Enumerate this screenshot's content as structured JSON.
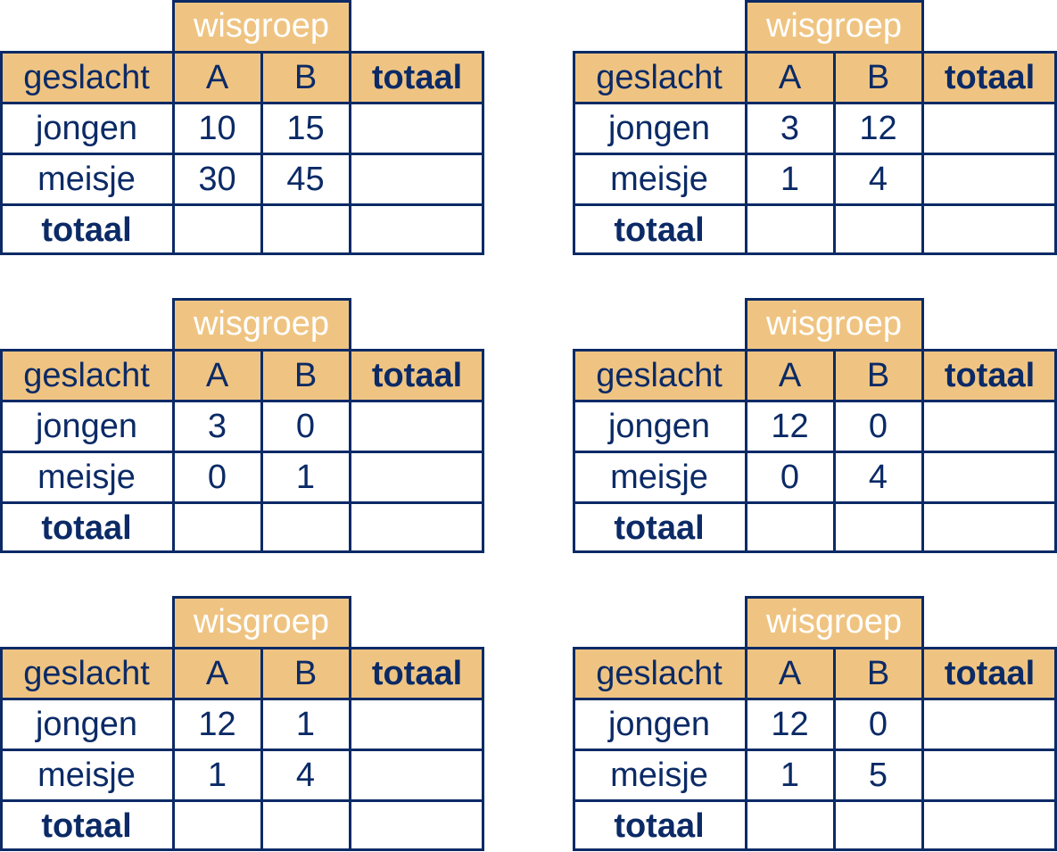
{
  "colors": {
    "header_fill": "#efc482",
    "border": "#0b2a66",
    "text": "#0b2a66",
    "group_header_text": "#ffffff"
  },
  "tables": [
    {
      "group_header": "wisgroep",
      "row_header_label": "geslacht",
      "columns": [
        "A",
        "B"
      ],
      "total_label": "totaal",
      "rows": [
        {
          "label": "jongen",
          "values": [
            "10",
            "15"
          ],
          "total": ""
        },
        {
          "label": "meisje",
          "values": [
            "30",
            "45"
          ],
          "total": ""
        }
      ],
      "total_row": {
        "label": "totaal",
        "values": [
          "",
          ""
        ],
        "total": ""
      }
    },
    {
      "group_header": "wisgroep",
      "row_header_label": "geslacht",
      "columns": [
        "A",
        "B"
      ],
      "total_label": "totaal",
      "rows": [
        {
          "label": "jongen",
          "values": [
            "3",
            "12"
          ],
          "total": ""
        },
        {
          "label": "meisje",
          "values": [
            "1",
            "4"
          ],
          "total": ""
        }
      ],
      "total_row": {
        "label": "totaal",
        "values": [
          "",
          ""
        ],
        "total": ""
      }
    },
    {
      "group_header": "wisgroep",
      "row_header_label": "geslacht",
      "columns": [
        "A",
        "B"
      ],
      "total_label": "totaal",
      "rows": [
        {
          "label": "jongen",
          "values": [
            "3",
            "0"
          ],
          "total": ""
        },
        {
          "label": "meisje",
          "values": [
            "0",
            "1"
          ],
          "total": ""
        }
      ],
      "total_row": {
        "label": "totaal",
        "values": [
          "",
          ""
        ],
        "total": ""
      }
    },
    {
      "group_header": "wisgroep",
      "row_header_label": "geslacht",
      "columns": [
        "A",
        "B"
      ],
      "total_label": "totaal",
      "rows": [
        {
          "label": "jongen",
          "values": [
            "12",
            "0"
          ],
          "total": ""
        },
        {
          "label": "meisje",
          "values": [
            "0",
            "4"
          ],
          "total": ""
        }
      ],
      "total_row": {
        "label": "totaal",
        "values": [
          "",
          ""
        ],
        "total": ""
      }
    },
    {
      "group_header": "wisgroep",
      "row_header_label": "geslacht",
      "columns": [
        "A",
        "B"
      ],
      "total_label": "totaal",
      "rows": [
        {
          "label": "jongen",
          "values": [
            "12",
            "1"
          ],
          "total": ""
        },
        {
          "label": "meisje",
          "values": [
            "1",
            "4"
          ],
          "total": ""
        }
      ],
      "total_row": {
        "label": "totaal",
        "values": [
          "",
          ""
        ],
        "total": ""
      }
    },
    {
      "group_header": "wisgroep",
      "row_header_label": "geslacht",
      "columns": [
        "A",
        "B"
      ],
      "total_label": "totaal",
      "rows": [
        {
          "label": "jongen",
          "values": [
            "12",
            "0"
          ],
          "total": ""
        },
        {
          "label": "meisje",
          "values": [
            "1",
            "5"
          ],
          "total": ""
        }
      ],
      "total_row": {
        "label": "totaal",
        "values": [
          "",
          ""
        ],
        "total": ""
      }
    }
  ]
}
